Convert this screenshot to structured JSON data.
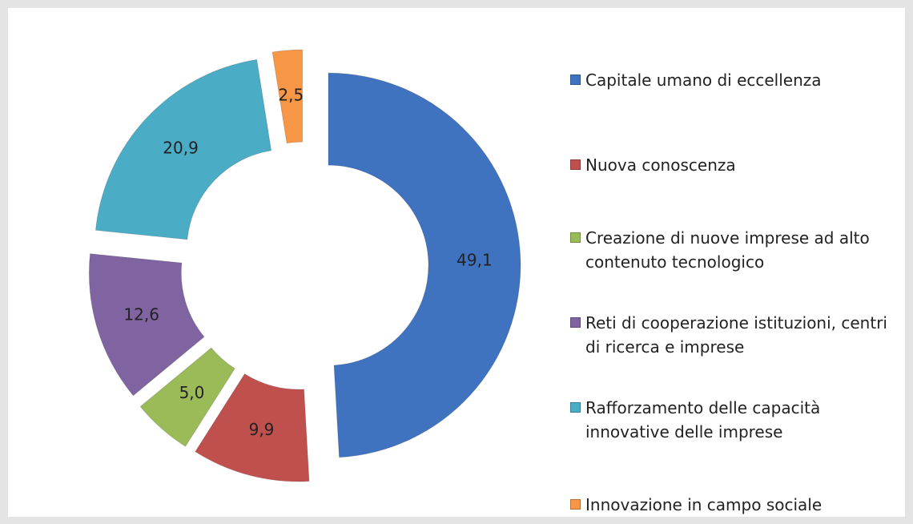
{
  "chart_data": {
    "type": "donut",
    "categories": [
      "Capitale umano di eccellenza",
      "Nuova conoscenza",
      "Creazione di nuove imprese ad alto contenuto tecnologico",
      "Reti di cooperazione istituzioni, centri di ricerca e imprese",
      "Rafforzamento delle capacità innovative delle imprese",
      "Innovazione in campo sociale"
    ],
    "values": [
      49.1,
      9.9,
      5.0,
      12.6,
      20.9,
      2.5
    ],
    "value_labels": [
      "49,1",
      "9,9",
      "5,0",
      "12,6",
      "20,9",
      "2,5"
    ],
    "colors": [
      "#3f73c0",
      "#c0504d",
      "#9bbb59",
      "#8064a2",
      "#4bacc6",
      "#f79646"
    ],
    "legend": "right"
  }
}
